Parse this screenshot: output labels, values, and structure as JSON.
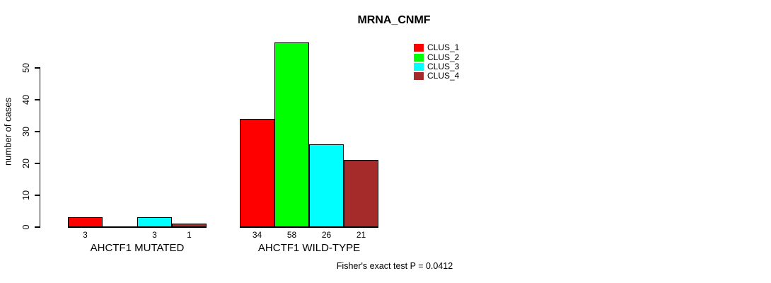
{
  "chart_data": {
    "type": "bar",
    "title": "MRNA_CNMF",
    "ylabel": "number of cases",
    "xlabel": "",
    "ylim": [
      0,
      58
    ],
    "y_ticks": [
      0,
      10,
      20,
      30,
      40,
      50
    ],
    "grid": false,
    "legend_position": "top-right",
    "bar_value_labels": true,
    "categories": [
      "AHCTF1 MUTATED",
      "AHCTF1 WILD-TYPE"
    ],
    "series": [
      {
        "name": "CLUS_1",
        "color": "#ff0000",
        "values": [
          3,
          34
        ]
      },
      {
        "name": "CLUS_2",
        "color": "#00ff00",
        "values": [
          0,
          58
        ]
      },
      {
        "name": "CLUS_3",
        "color": "#00ffff",
        "values": [
          3,
          26
        ]
      },
      {
        "name": "CLUS_4",
        "color": "#a52a2a",
        "values": [
          1,
          21
        ]
      }
    ],
    "annotation": "Fisher's exact test P = 0.0412"
  },
  "colors": {
    "axis": "#000000",
    "background": "#ffffff"
  }
}
